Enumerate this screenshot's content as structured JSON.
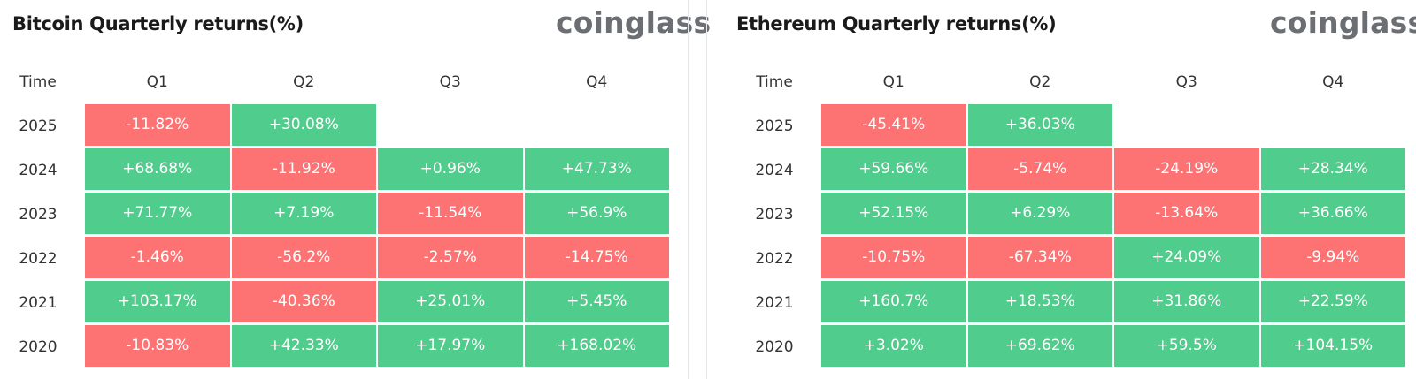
{
  "colors": {
    "positive": "#50cc8c",
    "negative": "#fd7373"
  },
  "chart_data": [
    {
      "type": "table",
      "title": "Bitcoin Quarterly returns(%)",
      "brand": "coinglass",
      "corner_label": "Time",
      "columns": [
        "Q1",
        "Q2",
        "Q3",
        "Q4"
      ],
      "rows": [
        {
          "label": "2025",
          "values": [
            "-11.82%",
            "+30.08%",
            null,
            null
          ]
        },
        {
          "label": "2024",
          "values": [
            "+68.68%",
            "-11.92%",
            "+0.96%",
            "+47.73%"
          ]
        },
        {
          "label": "2023",
          "values": [
            "+71.77%",
            "+7.19%",
            "-11.54%",
            "+56.9%"
          ]
        },
        {
          "label": "2022",
          "values": [
            "-1.46%",
            "-56.2%",
            "-2.57%",
            "-14.75%"
          ]
        },
        {
          "label": "2021",
          "values": [
            "+103.17%",
            "-40.36%",
            "+25.01%",
            "+5.45%"
          ]
        },
        {
          "label": "2020",
          "values": [
            "-10.83%",
            "+42.33%",
            "+17.97%",
            "+168.02%"
          ]
        }
      ]
    },
    {
      "type": "table",
      "title": "Ethereum Quarterly returns(%)",
      "brand": "coinglass",
      "corner_label": "Time",
      "columns": [
        "Q1",
        "Q2",
        "Q3",
        "Q4"
      ],
      "rows": [
        {
          "label": "2025",
          "values": [
            "-45.41%",
            "+36.03%",
            null,
            null
          ]
        },
        {
          "label": "2024",
          "values": [
            "+59.66%",
            "-5.74%",
            "-24.19%",
            "+28.34%"
          ]
        },
        {
          "label": "2023",
          "values": [
            "+52.15%",
            "+6.29%",
            "-13.64%",
            "+36.66%"
          ]
        },
        {
          "label": "2022",
          "values": [
            "-10.75%",
            "-67.34%",
            "+24.09%",
            "-9.94%"
          ]
        },
        {
          "label": "2021",
          "values": [
            "+160.7%",
            "+18.53%",
            "+31.86%",
            "+22.59%"
          ]
        },
        {
          "label": "2020",
          "values": [
            "+3.02%",
            "+69.62%",
            "+59.5%",
            "+104.15%"
          ]
        }
      ]
    }
  ]
}
